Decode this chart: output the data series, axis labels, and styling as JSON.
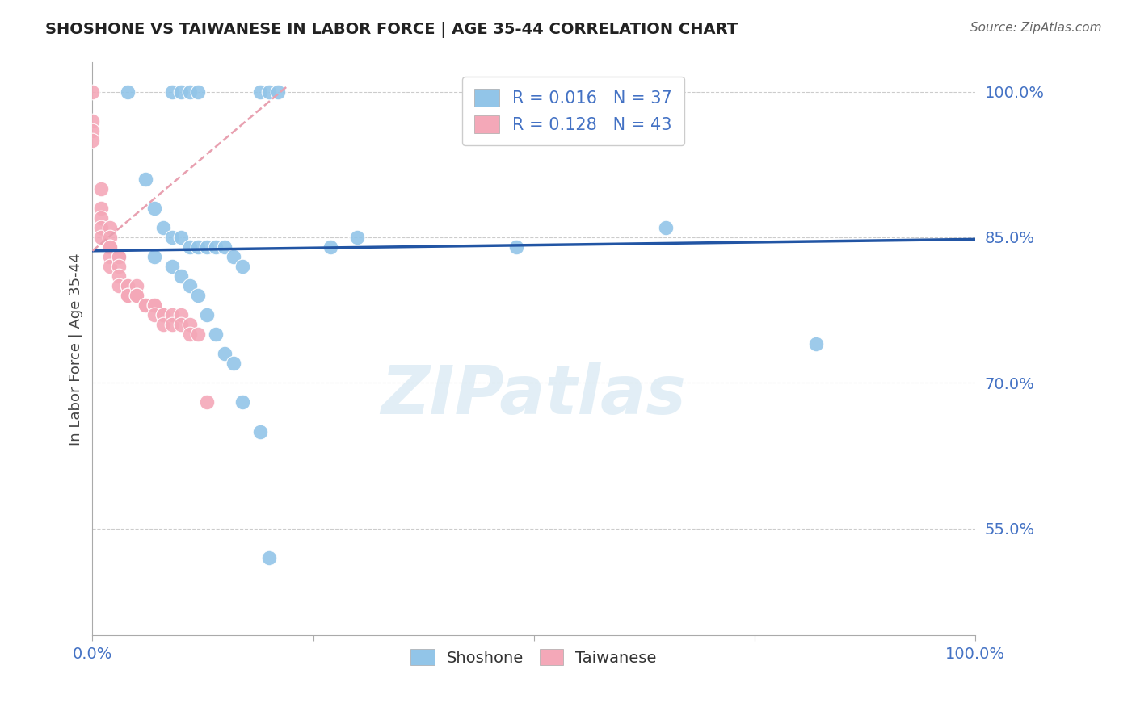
{
  "title": "SHOSHONE VS TAIWANESE IN LABOR FORCE | AGE 35-44 CORRELATION CHART",
  "source": "Source: ZipAtlas.com",
  "ylabel": "In Labor Force | Age 35-44",
  "xlim": [
    0.0,
    1.0
  ],
  "ylim": [
    0.44,
    1.03
  ],
  "yticks": [
    0.55,
    0.7,
    0.85,
    1.0
  ],
  "ytick_labels": [
    "55.0%",
    "70.0%",
    "85.0%",
    "100.0%"
  ],
  "xticks": [
    0.0,
    0.25,
    0.5,
    0.75,
    1.0
  ],
  "xtick_labels": [
    "0.0%",
    "",
    "",
    "",
    "100.0%"
  ],
  "r_shoshone": 0.016,
  "n_shoshone": 37,
  "r_taiwanese": 0.128,
  "n_taiwanese": 43,
  "shoshone_color": "#92c5e8",
  "taiwanese_color": "#f4a8b8",
  "shoshone_line_color": "#2255a4",
  "taiwanese_line_color": "#e8a0b0",
  "background_color": "#ffffff",
  "watermark_text": "ZIPatlas",
  "shoshone_x": [
    0.04,
    0.09,
    0.1,
    0.11,
    0.12,
    0.19,
    0.2,
    0.21,
    0.06,
    0.07,
    0.08,
    0.09,
    0.1,
    0.11,
    0.12,
    0.13,
    0.14,
    0.15,
    0.16,
    0.17,
    0.07,
    0.09,
    0.27,
    0.3,
    0.48,
    0.65,
    0.82,
    0.1,
    0.11,
    0.12,
    0.13,
    0.14,
    0.15,
    0.16,
    0.17,
    0.19,
    0.2
  ],
  "shoshone_y": [
    1.0,
    1.0,
    1.0,
    1.0,
    1.0,
    1.0,
    1.0,
    1.0,
    0.91,
    0.88,
    0.86,
    0.85,
    0.85,
    0.84,
    0.84,
    0.84,
    0.84,
    0.84,
    0.83,
    0.82,
    0.83,
    0.82,
    0.84,
    0.85,
    0.84,
    0.86,
    0.74,
    0.81,
    0.8,
    0.79,
    0.77,
    0.75,
    0.73,
    0.72,
    0.68,
    0.65,
    0.52
  ],
  "taiwanese_x": [
    0.0,
    0.0,
    0.0,
    0.0,
    0.01,
    0.01,
    0.01,
    0.01,
    0.01,
    0.02,
    0.02,
    0.02,
    0.02,
    0.02,
    0.02,
    0.03,
    0.03,
    0.03,
    0.03,
    0.03,
    0.04,
    0.04,
    0.04,
    0.04,
    0.05,
    0.05,
    0.05,
    0.06,
    0.06,
    0.07,
    0.07,
    0.07,
    0.08,
    0.08,
    0.08,
    0.09,
    0.09,
    0.1,
    0.1,
    0.11,
    0.11,
    0.12,
    0.13
  ],
  "taiwanese_y": [
    1.0,
    0.97,
    0.96,
    0.95,
    0.9,
    0.88,
    0.87,
    0.86,
    0.85,
    0.86,
    0.85,
    0.84,
    0.84,
    0.83,
    0.82,
    0.83,
    0.83,
    0.82,
    0.81,
    0.8,
    0.8,
    0.8,
    0.79,
    0.79,
    0.8,
    0.79,
    0.79,
    0.78,
    0.78,
    0.78,
    0.78,
    0.77,
    0.77,
    0.77,
    0.76,
    0.77,
    0.76,
    0.77,
    0.76,
    0.76,
    0.75,
    0.75,
    0.68
  ],
  "shoshone_line_x": [
    0.0,
    1.0
  ],
  "shoshone_line_y": [
    0.836,
    0.848
  ],
  "taiwanese_line_x": [
    0.0,
    0.22
  ],
  "taiwanese_line_y": [
    0.836,
    1.005
  ]
}
